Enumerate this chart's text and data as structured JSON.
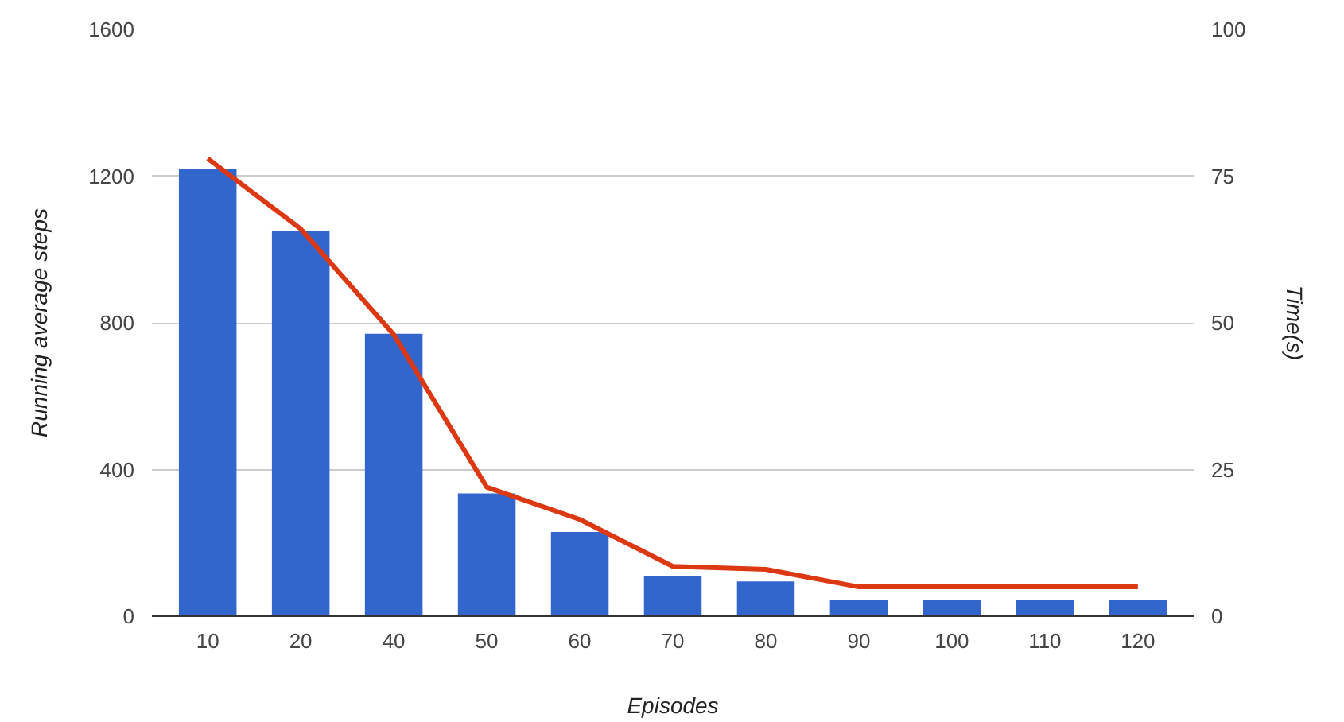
{
  "chart_data": {
    "type": "bar",
    "xlabel": "Episodes",
    "ylabel": "Running average steps",
    "y2label": "Time(s)",
    "categories": [
      "10",
      "20",
      "40",
      "50",
      "60",
      "70",
      "80",
      "90",
      "100",
      "110",
      "120"
    ],
    "series": [
      {
        "color": "#3366cc",
        "values": [
          1220,
          1050,
          770,
          335,
          230,
          110,
          95,
          45,
          45,
          45,
          45
        ]
      },
      {
        "type": "line",
        "axis": "y2",
        "color": "#dc3912",
        "values": [
          78,
          66,
          48,
          22,
          16.5,
          8.5,
          8,
          5,
          5,
          5,
          5
        ]
      }
    ],
    "ylim": [
      0,
      1600
    ],
    "yticks": [
      0,
      400,
      800,
      1200,
      1600
    ],
    "y2lim": [
      0,
      100
    ],
    "y2ticks": [
      0,
      25,
      50,
      75,
      100
    ],
    "grid": "y"
  }
}
